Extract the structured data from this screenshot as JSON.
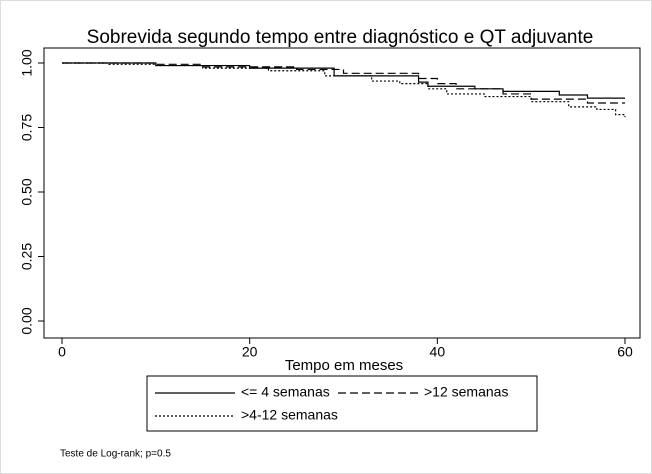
{
  "chart_data": {
    "type": "line",
    "title": "Sobrevida segundo tempo entre diagnóstico e QT adjuvante",
    "xlabel": "Tempo em meses",
    "xlim": [
      0,
      60
    ],
    "xticks": [
      0,
      20,
      40,
      60
    ],
    "ylim": [
      0,
      1
    ],
    "yticks": [
      {
        "value": 0,
        "label": "0.00"
      },
      {
        "value": 0.25,
        "label": "0.25"
      },
      {
        "value": 0.5,
        "label": "0.50"
      },
      {
        "value": 0.75,
        "label": "0.75"
      },
      {
        "value": 1,
        "label": "1.00"
      }
    ],
    "step": true,
    "series": [
      {
        "name": "<= 4 semanas",
        "color": "#000000",
        "dash": "solid",
        "x": [
          0,
          10,
          20,
          29,
          38,
          39,
          44,
          47,
          53,
          56,
          60
        ],
        "values": [
          1,
          0.99,
          0.98,
          0.95,
          0.926,
          0.91,
          0.9,
          0.89,
          0.876,
          0.864,
          0.864
        ]
      },
      {
        "name": ">12 semanas",
        "color": "#000000",
        "dash": "dashed",
        "x": [
          0,
          10,
          15,
          25,
          30,
          38,
          40,
          42,
          47,
          50,
          56,
          60
        ],
        "values": [
          1,
          0.995,
          0.985,
          0.975,
          0.96,
          0.94,
          0.92,
          0.9,
          0.88,
          0.86,
          0.845,
          0.845
        ]
      },
      {
        "name": ">4-12 semanas",
        "color": "#000000",
        "dash": "dotted",
        "x": [
          0,
          5,
          10,
          15,
          22,
          28,
          33,
          36,
          39,
          41,
          45,
          50,
          54,
          57,
          59,
          60
        ],
        "values": [
          1,
          0.995,
          0.99,
          0.98,
          0.97,
          0.95,
          0.93,
          0.92,
          0.9,
          0.88,
          0.87,
          0.85,
          0.83,
          0.82,
          0.8,
          0.79
        ]
      }
    ],
    "note": "Teste de Log-rank; p=0.5"
  }
}
